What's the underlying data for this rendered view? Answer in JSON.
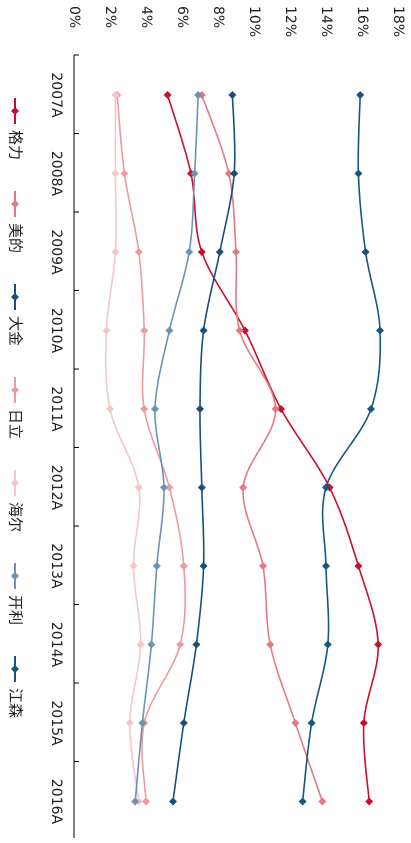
{
  "chart_data": {
    "type": "line",
    "orientation": "rotated-90-clockwise",
    "categories": [
      "2007A",
      "2008A",
      "2009A",
      "2010A",
      "2011A",
      "2012A",
      "2013A",
      "2014A",
      "2015A",
      "2016A"
    ],
    "ylim": [
      0,
      18
    ],
    "y_ticks": [
      "0%",
      "2%",
      "4%",
      "6%",
      "8%",
      "10%",
      "12%",
      "14%",
      "16%",
      "18%"
    ],
    "grid": false,
    "legend_position": "left",
    "series": [
      {
        "name": "格力",
        "color": "#c8102e",
        "marker": "diamond",
        "values": [
          5.2,
          6.5,
          7.1,
          9.5,
          11.5,
          14.2,
          15.8,
          16.9,
          16.1,
          16.4
        ]
      },
      {
        "name": "美的",
        "color": "#e07b84",
        "marker": "diamond",
        "values": [
          7.1,
          8.6,
          9.0,
          9.2,
          11.2,
          9.4,
          10.5,
          10.9,
          12.3,
          13.8
        ]
      },
      {
        "name": "大金",
        "color": "#1b4f7a",
        "marker": "diamond",
        "values": [
          8.8,
          8.9,
          8.1,
          7.2,
          7.0,
          7.1,
          7.2,
          6.8,
          6.1,
          5.5
        ]
      },
      {
        "name": "日立",
        "color": "#ee9aa1",
        "marker": "diamond",
        "values": [
          2.4,
          2.8,
          3.6,
          3.9,
          3.9,
          5.3,
          6.1,
          5.9,
          3.9,
          4.0
        ]
      },
      {
        "name": "海尔",
        "color": "#f4c6c9",
        "marker": "diamond",
        "values": [
          2.3,
          2.3,
          2.3,
          1.8,
          2.0,
          3.6,
          3.3,
          3.7,
          3.1,
          3.6
        ]
      },
      {
        "name": "开利",
        "color": "#6c93b3",
        "marker": "diamond",
        "values": [
          6.9,
          6.7,
          6.4,
          5.3,
          4.5,
          5.0,
          4.6,
          4.3,
          3.8,
          3.4
        ]
      },
      {
        "name": "江森",
        "color": "#17577e",
        "marker": "diamond",
        "values": [
          15.9,
          15.8,
          16.2,
          17.0,
          16.5,
          14.0,
          14.0,
          14.1,
          13.2,
          12.7
        ]
      }
    ]
  }
}
